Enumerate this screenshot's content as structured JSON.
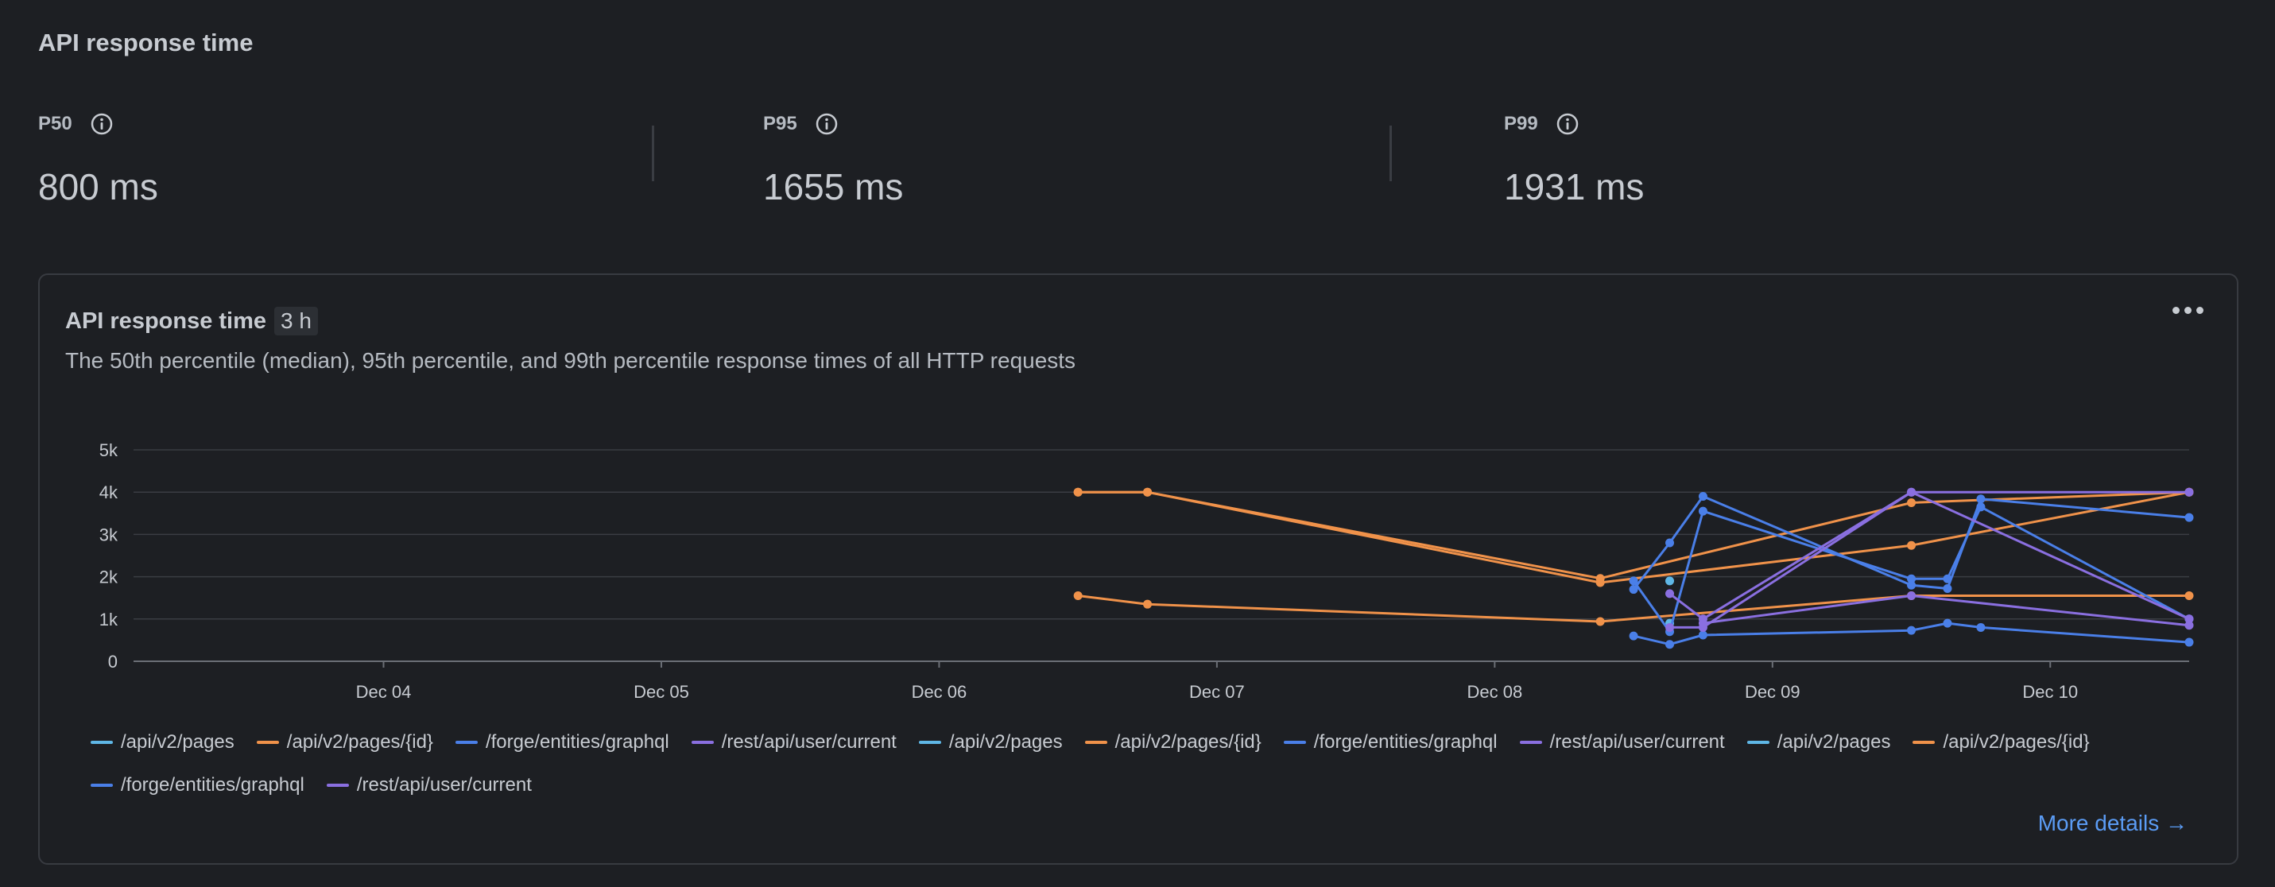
{
  "page": {
    "title": "API response time"
  },
  "metrics": [
    {
      "label": "P50",
      "value": "800 ms",
      "icon": "info-icon"
    },
    {
      "label": "P95",
      "value": "1655 ms",
      "icon": "info-icon"
    },
    {
      "label": "P99",
      "value": "1931 ms",
      "icon": "info-icon"
    }
  ],
  "card": {
    "title": "API response time",
    "badge": "3 h",
    "description": "The 50th percentile (median), 95th percentile, and 99th percentile response times of all HTTP requests",
    "more_details": "More details →",
    "menu_icon": "more-horizontal-icon"
  },
  "colors": {
    "background": "#1d1f23",
    "cyan": "#5fb7e6",
    "orange": "#f0924a",
    "blue": "#4a7fe8",
    "purple": "#8a6fe0",
    "link": "#5b9cf5"
  },
  "legend": [
    {
      "label": "/api/v2/pages",
      "color": "#5fb7e6"
    },
    {
      "label": "/api/v2/pages/{id}",
      "color": "#f0924a"
    },
    {
      "label": "/forge/entities/graphql",
      "color": "#4a7fe8"
    },
    {
      "label": "/rest/api/user/current",
      "color": "#8a6fe0"
    },
    {
      "label": "/api/v2/pages",
      "color": "#5fb7e6"
    },
    {
      "label": "/api/v2/pages/{id}",
      "color": "#f0924a"
    },
    {
      "label": "/forge/entities/graphql",
      "color": "#4a7fe8"
    },
    {
      "label": "/rest/api/user/current",
      "color": "#8a6fe0"
    },
    {
      "label": "/api/v2/pages",
      "color": "#5fb7e6"
    },
    {
      "label": "/api/v2/pages/{id}",
      "color": "#f0924a"
    },
    {
      "label": "/forge/entities/graphql",
      "color": "#4a7fe8"
    },
    {
      "label": "/rest/api/user/current",
      "color": "#8a6fe0"
    }
  ],
  "chart_data": {
    "type": "line",
    "title": "",
    "xlabel": "",
    "ylabel": "",
    "ylim": [
      0,
      5000
    ],
    "yticks": [
      0,
      1000,
      2000,
      3000,
      4000,
      5000
    ],
    "ytick_labels": [
      "0",
      "1k",
      "2k",
      "3k",
      "4k",
      "5k"
    ],
    "xlim": [
      3.1,
      10.5
    ],
    "xticks": [
      4,
      5,
      6,
      7,
      8,
      9,
      10
    ],
    "xtick_labels": [
      "Dec 04",
      "Dec 05",
      "Dec 06",
      "Dec 07",
      "Dec 08",
      "Dec 09",
      "Dec 10"
    ],
    "grid": true,
    "legend_position": "bottom",
    "series": [
      {
        "name": "/api/v2/pages",
        "color": "#5fb7e6",
        "points": [
          [
            8.63,
            1900
          ]
        ]
      },
      {
        "name": "/api/v2/pages",
        "color": "#5fb7e6",
        "points": [
          [
            8.63,
            900
          ]
        ]
      },
      {
        "name": "/api/v2/pages/{id}",
        "color": "#f0924a",
        "points": [
          [
            6.5,
            4000
          ],
          [
            6.75,
            4000
          ],
          [
            8.38,
            1960
          ],
          [
            9.5,
            3750
          ],
          [
            10.5,
            4000
          ]
        ]
      },
      {
        "name": "/api/v2/pages/{id}",
        "color": "#f0924a",
        "points": [
          [
            6.5,
            4000
          ],
          [
            6.75,
            4000
          ],
          [
            8.38,
            1860
          ],
          [
            9.5,
            2740
          ],
          [
            10.5,
            4000
          ]
        ]
      },
      {
        "name": "/api/v2/pages/{id}",
        "color": "#f0924a",
        "points": [
          [
            6.5,
            1550
          ],
          [
            6.75,
            1350
          ],
          [
            8.38,
            940
          ],
          [
            9.5,
            1550
          ],
          [
            10.5,
            1550
          ]
        ]
      },
      {
        "name": "/forge/entities/graphql",
        "color": "#4a7fe8",
        "points": [
          [
            8.5,
            1700
          ],
          [
            8.63,
            2800
          ],
          [
            8.75,
            3900
          ],
          [
            9.5,
            1800
          ],
          [
            9.63,
            1720
          ],
          [
            9.75,
            3840
          ],
          [
            10.5,
            3400
          ]
        ]
      },
      {
        "name": "/forge/entities/graphql",
        "color": "#4a7fe8",
        "points": [
          [
            8.5,
            1900
          ],
          [
            8.63,
            700
          ],
          [
            8.75,
            3550
          ],
          [
            9.5,
            1950
          ],
          [
            9.63,
            1950
          ],
          [
            9.75,
            3650
          ],
          [
            10.5,
            1000
          ]
        ]
      },
      {
        "name": "/forge/entities/graphql",
        "color": "#4a7fe8",
        "points": [
          [
            8.5,
            600
          ],
          [
            8.63,
            400
          ],
          [
            8.75,
            620
          ],
          [
            9.5,
            730
          ],
          [
            9.63,
            900
          ],
          [
            9.75,
            800
          ],
          [
            10.5,
            450
          ]
        ]
      },
      {
        "name": "/rest/api/user/current",
        "color": "#8a6fe0",
        "points": [
          [
            8.63,
            1600
          ],
          [
            8.75,
            1000
          ],
          [
            9.5,
            4000
          ],
          [
            10.5,
            1000
          ]
        ]
      },
      {
        "name": "/rest/api/user/current",
        "color": "#8a6fe0",
        "points": [
          [
            8.63,
            800
          ],
          [
            8.75,
            800
          ],
          [
            9.5,
            4000
          ],
          [
            10.5,
            4000
          ]
        ]
      },
      {
        "name": "/rest/api/user/current",
        "color": "#8a6fe0",
        "points": [
          [
            8.75,
            900
          ],
          [
            9.5,
            1550
          ],
          [
            10.5,
            850
          ]
        ]
      }
    ]
  }
}
